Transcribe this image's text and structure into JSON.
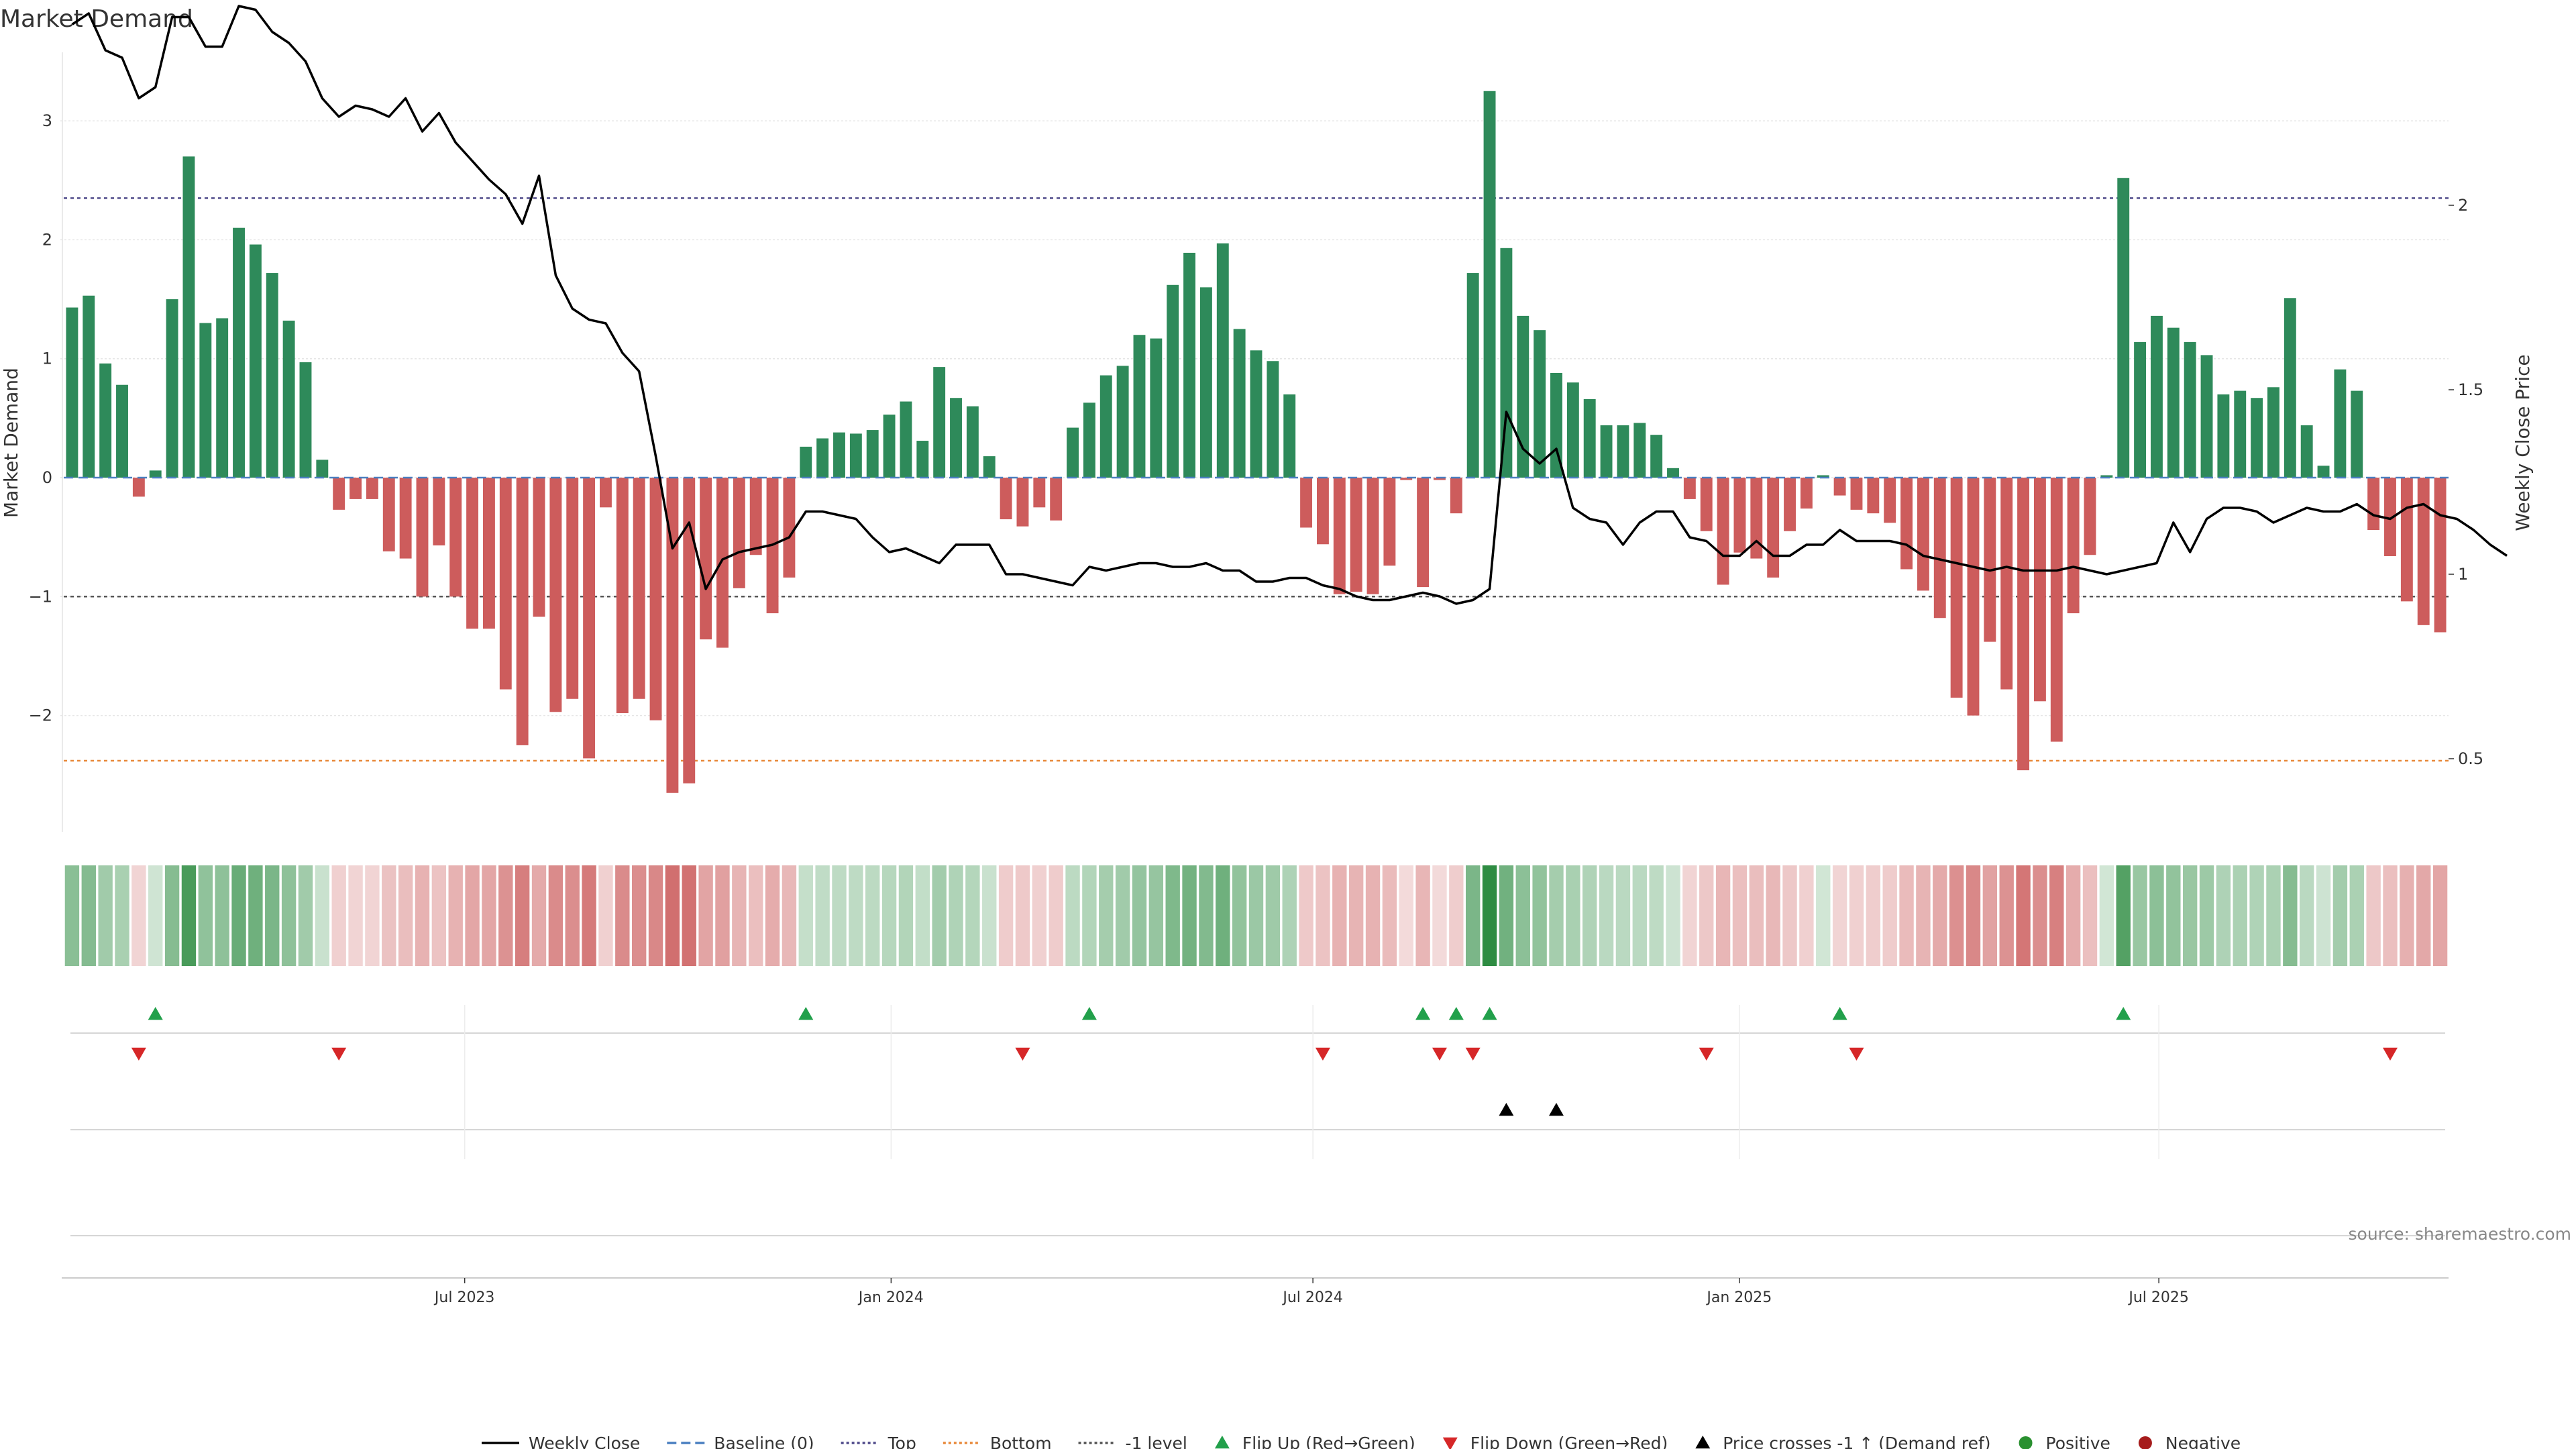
{
  "chart_data": {
    "type": "bar",
    "title": "Market Demand",
    "ylabel": "Market Demand",
    "y2label": "Weekly Close Price",
    "ylim": [
      -3.0,
      3.6
    ],
    "y2lim": [
      0.31,
      2.39
    ],
    "yticks": [
      -2,
      -1,
      0,
      1,
      2,
      3
    ],
    "yticks_text": [
      "−2",
      "−1",
      "0",
      "1",
      "2",
      "3"
    ],
    "y2ticks": [
      0.5,
      1,
      1.5,
      2
    ],
    "y2ticks_text": [
      "0.5",
      "1",
      "1.5",
      "2"
    ],
    "reference_lines": {
      "baseline": 0,
      "top": 2.35,
      "bottom": -2.38,
      "minus_one": -1
    },
    "x_start": "2023-01-09",
    "x_end": "2025-11-03",
    "xticks": [
      {
        "date": "2023-07-01",
        "label": "Jul 2023"
      },
      {
        "date": "2024-01-01",
        "label": "Jan 2024"
      },
      {
        "date": "2024-07-01",
        "label": "Jul 2024"
      },
      {
        "date": "2025-01-01",
        "label": "Jan 2025"
      },
      {
        "date": "2025-07-01",
        "label": "Jul 2025"
      }
    ],
    "series": [
      {
        "name": "Market Demand",
        "values": [
          1.43,
          1.53,
          0.96,
          0.78,
          -0.16,
          0.06,
          1.5,
          2.7,
          1.3,
          1.34,
          2.1,
          1.96,
          1.72,
          1.32,
          0.97,
          0.15,
          -0.27,
          -0.18,
          -0.18,
          -0.62,
          -0.68,
          -1.0,
          -0.57,
          -1.0,
          -1.27,
          -1.27,
          -1.78,
          -2.25,
          -1.17,
          -1.97,
          -1.86,
          -2.36,
          -0.25,
          -1.98,
          -1.86,
          -2.04,
          -2.65,
          -2.57,
          -1.36,
          -1.43,
          -0.93,
          -0.65,
          -1.14,
          -0.84,
          0.26,
          0.33,
          0.38,
          0.37,
          0.4,
          0.53,
          0.64,
          0.31,
          0.93,
          0.67,
          0.6,
          0.18,
          -0.35,
          -0.41,
          -0.25,
          -0.36,
          0.42,
          0.63,
          0.86,
          0.94,
          1.2,
          1.17,
          1.62,
          1.89,
          1.6,
          1.97,
          1.25,
          1.07,
          0.98,
          0.7,
          -0.42,
          -0.56,
          -0.98,
          -0.96,
          -0.98,
          -0.74,
          -0.02,
          -0.92,
          -0.02,
          -0.3,
          1.72,
          3.25,
          1.93,
          1.36,
          1.24,
          0.88,
          0.8,
          0.66,
          0.44,
          0.44,
          0.46,
          0.36,
          0.08,
          -0.18,
          -0.45,
          -0.9,
          -0.63,
          -0.68,
          -0.84,
          -0.45,
          -0.26,
          0.02,
          -0.15,
          -0.27,
          -0.3,
          -0.38,
          -0.77,
          -0.95,
          -1.18,
          -1.85,
          -2.0,
          -1.38,
          -1.78,
          -2.46,
          -1.88,
          -2.22,
          -1.14,
          -0.65,
          0.02,
          2.52,
          1.14,
          1.36,
          1.26,
          1.14,
          1.03,
          0.7,
          0.73,
          0.67,
          0.76,
          1.51,
          0.44,
          0.1,
          0.91,
          0.73,
          -0.44,
          -0.66,
          -1.04,
          -1.24,
          -1.3
        ]
      },
      {
        "name": "Weekly Close",
        "values": [
          2.49,
          2.52,
          2.42,
          2.4,
          2.29,
          2.32,
          2.51,
          2.51,
          2.43,
          2.43,
          2.54,
          2.53,
          2.47,
          2.44,
          2.39,
          2.29,
          2.24,
          2.27,
          2.26,
          2.24,
          2.29,
          2.2,
          2.25,
          2.17,
          2.12,
          2.07,
          2.03,
          1.95,
          2.08,
          1.81,
          1.72,
          1.69,
          1.68,
          1.6,
          1.55,
          1.32,
          1.07,
          1.14,
          0.96,
          1.04,
          1.06,
          1.07,
          1.08,
          1.1,
          1.17,
          1.17,
          1.16,
          1.15,
          1.1,
          1.06,
          1.07,
          1.05,
          1.03,
          1.08,
          1.08,
          1.08,
          1.0,
          1.0,
          0.99,
          0.98,
          0.97,
          1.02,
          1.01,
          1.02,
          1.03,
          1.03,
          1.02,
          1.02,
          1.03,
          1.01,
          1.01,
          0.98,
          0.98,
          0.99,
          0.99,
          0.97,
          0.96,
          0.94,
          0.93,
          0.93,
          0.94,
          0.95,
          0.94,
          0.92,
          0.93,
          0.96,
          1.44,
          1.34,
          1.3,
          1.34,
          1.18,
          1.15,
          1.14,
          1.08,
          1.14,
          1.17,
          1.17,
          1.1,
          1.09,
          1.05,
          1.05,
          1.09,
          1.05,
          1.05,
          1.08,
          1.08,
          1.12,
          1.09,
          1.09,
          1.09,
          1.08,
          1.05,
          1.04,
          1.03,
          1.02,
          1.01,
          1.02,
          1.01,
          1.01,
          1.01,
          1.02,
          1.01,
          1.0,
          1.01,
          1.02,
          1.03,
          1.14,
          1.06,
          1.15,
          1.18,
          1.18,
          1.17,
          1.14,
          1.16,
          1.18,
          1.17,
          1.17,
          1.19,
          1.16,
          1.15,
          1.18,
          1.19,
          1.16,
          1.15,
          1.12,
          1.08,
          1.05
        ]
      }
    ],
    "flip_up_weeks": [
      5,
      44,
      61,
      81,
      83,
      85,
      106,
      123
    ],
    "flip_down_weeks": [
      4,
      16,
      57,
      75,
      82,
      84,
      98,
      107,
      139
    ],
    "price_cross_weeks": [
      86,
      89
    ],
    "legend": [
      {
        "label": "Weekly Close",
        "kind": "line",
        "color": "#000000"
      },
      {
        "label": "Baseline (0)",
        "kind": "dashed",
        "color": "#4a7fc0"
      },
      {
        "label": "Top",
        "kind": "dotted",
        "color": "#4f4a8a"
      },
      {
        "label": "Bottom",
        "kind": "dotted",
        "color": "#e8893a"
      },
      {
        "label": "-1 level",
        "kind": "dotted",
        "color": "#555555"
      },
      {
        "label": "Flip Up (Red→Green)",
        "kind": "tri-up",
        "color": "#22a04b"
      },
      {
        "label": "Flip Down (Green→Red)",
        "kind": "tri-down",
        "color": "#d62728"
      },
      {
        "label": "Price crosses -1 ↑ (Demand ref)",
        "kind": "tri-up",
        "color": "#000000"
      },
      {
        "label": "Positive",
        "kind": "dot",
        "color": "#2a9030"
      },
      {
        "label": "Negative",
        "kind": "dot",
        "color": "#a61c1c"
      }
    ],
    "source": "source: sharemaestro.com"
  },
  "colors": {
    "positive": "#2e8a5a",
    "negative": "#cd5c5c",
    "price_line": "#000000",
    "top_line": "#4f4a8a",
    "bottom_line": "#e8893a",
    "baseline": "#4a7fc0",
    "grid": "#e6e6e6"
  }
}
